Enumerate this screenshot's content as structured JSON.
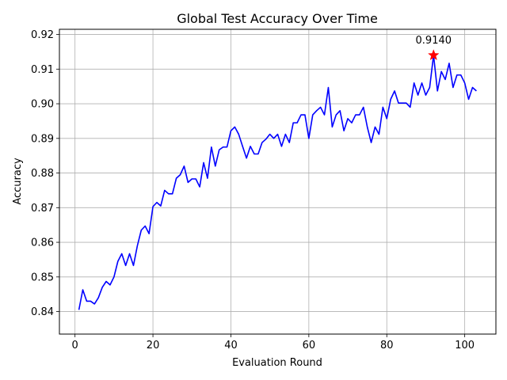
{
  "chart_data": {
    "type": "line",
    "title": "Global Test Accuracy Over Time",
    "xlabel": "Evaluation Round",
    "ylabel": "Accuracy",
    "xlim": [
      -4,
      108
    ],
    "ylim": [
      0.8335,
      0.9215
    ],
    "xticks": [
      0,
      20,
      40,
      60,
      80,
      100
    ],
    "yticks": [
      0.84,
      0.85,
      0.86,
      0.87,
      0.88,
      0.89,
      0.9,
      0.91,
      0.92
    ],
    "xtick_labels": [
      "0",
      "20",
      "40",
      "60",
      "80",
      "100"
    ],
    "ytick_labels": [
      "0.84",
      "0.85",
      "0.86",
      "0.87",
      "0.88",
      "0.89",
      "0.90",
      "0.91",
      "0.92"
    ],
    "grid": true,
    "line_color": "#0000ff",
    "marker_color": "#ff0000",
    "series": [
      {
        "x": [
          1,
          2,
          3,
          4,
          5,
          6,
          7,
          8,
          9,
          10,
          11,
          12,
          13,
          14,
          15,
          16,
          17,
          18,
          19,
          20,
          21,
          22,
          23,
          24,
          25,
          26,
          27,
          28,
          29,
          30,
          31,
          32,
          33,
          34,
          35,
          36,
          37,
          38,
          39,
          40,
          41,
          42,
          43,
          44,
          45,
          46,
          47,
          48,
          49,
          50,
          51,
          52,
          53,
          54,
          55,
          56,
          57,
          58,
          59,
          60,
          61,
          62,
          63,
          64,
          65,
          66,
          67,
          68,
          69,
          70,
          71,
          72,
          73,
          74,
          75,
          76,
          77,
          78,
          79,
          80,
          81,
          82,
          83,
          84,
          85,
          86,
          87,
          88,
          89,
          90,
          91,
          92,
          93,
          94,
          95,
          96,
          97,
          98,
          99,
          100,
          101,
          102,
          103
        ],
        "y": [
          0.8405,
          0.8463,
          0.843,
          0.843,
          0.8422,
          0.844,
          0.847,
          0.8487,
          0.8477,
          0.85,
          0.8545,
          0.8567,
          0.8533,
          0.8567,
          0.8533,
          0.859,
          0.8635,
          0.8647,
          0.8625,
          0.8703,
          0.8715,
          0.8705,
          0.875,
          0.874,
          0.874,
          0.8785,
          0.8795,
          0.882,
          0.8773,
          0.8783,
          0.8783,
          0.876,
          0.883,
          0.8785,
          0.8875,
          0.882,
          0.8867,
          0.8875,
          0.8875,
          0.8922,
          0.8933,
          0.8912,
          0.8877,
          0.8843,
          0.8877,
          0.8855,
          0.8855,
          0.8888,
          0.8898,
          0.8912,
          0.89,
          0.8912,
          0.8877,
          0.8912,
          0.8888,
          0.8945,
          0.8945,
          0.8968,
          0.8968,
          0.89,
          0.8968,
          0.898,
          0.899,
          0.8968,
          0.9047,
          0.8933,
          0.8968,
          0.898,
          0.8922,
          0.8957,
          0.8945,
          0.8968,
          0.8968,
          0.899,
          0.8933,
          0.8888,
          0.8933,
          0.8912,
          0.899,
          0.8957,
          0.9013,
          0.9037,
          0.9002,
          0.9002,
          0.9002,
          0.899,
          0.906,
          0.9025,
          0.906,
          0.9025,
          0.9047,
          0.914,
          0.9037,
          0.9093,
          0.907,
          0.9117,
          0.9047,
          0.9083,
          0.9083,
          0.906,
          0.9013,
          0.9047,
          0.9037
        ]
      }
    ],
    "annotations": [
      {
        "x": 92,
        "y": 0.914,
        "text": "0.9140"
      }
    ]
  }
}
